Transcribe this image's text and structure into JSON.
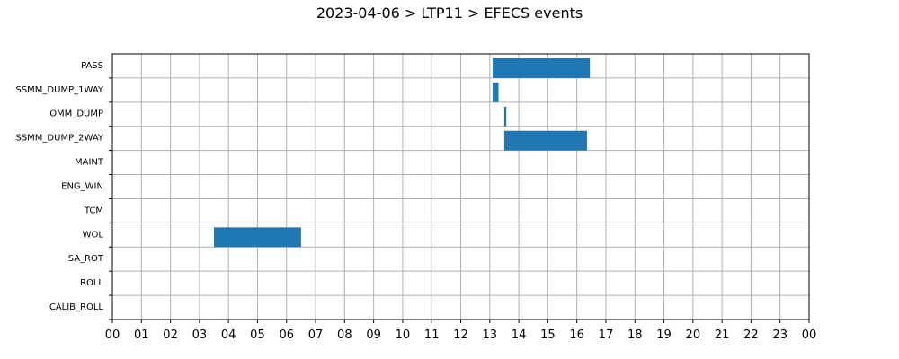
{
  "chart_data": {
    "type": "gantt",
    "title": "2023-04-06 > LTP11 > EFECS events",
    "xlabel": "",
    "ylabel": "",
    "x_unit": "hour of day",
    "xlim": [
      0,
      24
    ],
    "x_tick_labels": [
      "00",
      "01",
      "02",
      "03",
      "04",
      "05",
      "06",
      "07",
      "08",
      "09",
      "10",
      "11",
      "12",
      "13",
      "14",
      "15",
      "16",
      "17",
      "18",
      "19",
      "20",
      "21",
      "22",
      "23",
      "00"
    ],
    "categories": [
      "PASS",
      "SSMM_DUMP_1WAY",
      "OMM_DUMP",
      "SSMM_DUMP_2WAY",
      "MAINT",
      "ENG_WIN",
      "TCM",
      "WOL",
      "SA_ROT",
      "ROLL",
      "CALIB_ROLL"
    ],
    "grid": true,
    "bar_color": "#1f77b4",
    "events": [
      {
        "category": "PASS",
        "start": 13.1,
        "end": 16.45
      },
      {
        "category": "SSMM_DUMP_1WAY",
        "start": 13.1,
        "end": 13.3
      },
      {
        "category": "OMM_DUMP",
        "start": 13.5,
        "end": 13.57
      },
      {
        "category": "SSMM_DUMP_2WAY",
        "start": 13.5,
        "end": 16.35
      },
      {
        "category": "WOL",
        "start": 3.5,
        "end": 6.5
      }
    ]
  }
}
